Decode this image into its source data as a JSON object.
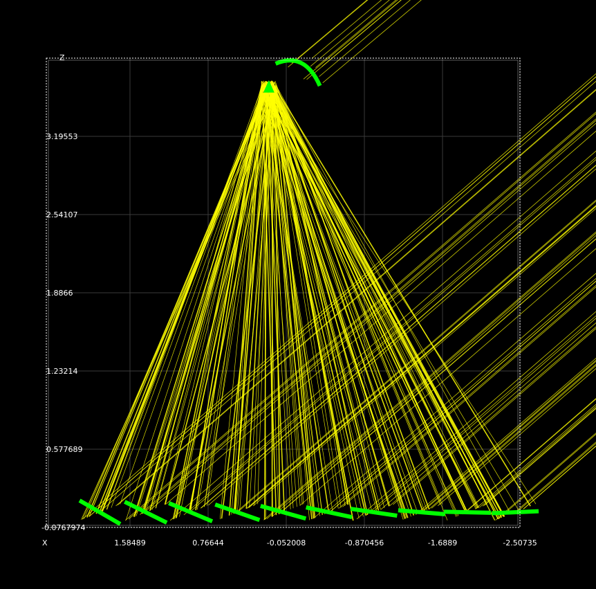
{
  "chart_data": {
    "type": "scatter",
    "title": "",
    "view": "3D ray-trace projection (XZ plane)",
    "xlabel": "X",
    "ylabel": "Z",
    "x_ticks": [
      "1.58489",
      "0.76644",
      "-0.052008",
      "-0.870456",
      "-1.6889",
      "-2.50735"
    ],
    "z_ticks": [
      "-0.0767974",
      "0.577689",
      "1.23214",
      "1.8866",
      "2.54107",
      "3.19553"
    ],
    "xlim": [
      2.2,
      -2.6
    ],
    "zlim": [
      -0.0767974,
      3.85
    ],
    "grid": true,
    "colors": {
      "background": "#000000",
      "grid": "#3a3a3a",
      "frame": "#ffffff",
      "rays": "#ffff00",
      "mirrors": "#00ff00"
    },
    "receiver": {
      "x": 0.13,
      "z": 3.62,
      "width": 0.45
    },
    "mirrors": [
      {
        "x": 1.9,
        "z": 0.05
      },
      {
        "x": 1.42,
        "z": 0.05
      },
      {
        "x": 0.95,
        "z": 0.05
      },
      {
        "x": 0.46,
        "z": 0.05
      },
      {
        "x": -0.02,
        "z": 0.05
      },
      {
        "x": -0.5,
        "z": 0.05
      },
      {
        "x": -0.97,
        "z": 0.05
      },
      {
        "x": -1.47,
        "z": 0.05
      },
      {
        "x": -1.95,
        "z": 0.05
      },
      {
        "x": -2.45,
        "z": 0.05
      }
    ],
    "secondary_mirror": {
      "x": -0.1,
      "z": 3.85
    }
  }
}
